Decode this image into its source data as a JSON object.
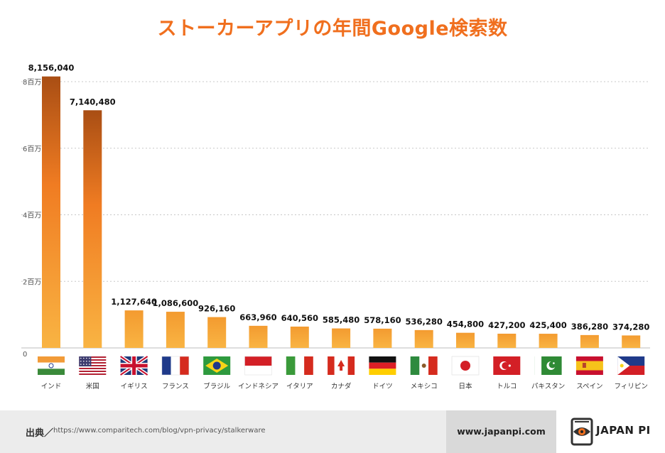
{
  "title": "ストーカーアプリの年間Google検索数",
  "colors": {
    "title": "#f06f1e",
    "bar_top": "#f6b545",
    "bar_top_major": "#a94e14",
    "bar_bottom": "#f9b443"
  },
  "footer": {
    "source_label": "出典／",
    "source_url": "https://www.comparitech.com/blog/vpn-privacy/stalkerware",
    "site": "www.japanpi.com",
    "brand": "JAPAN PI"
  },
  "chart_data": {
    "type": "bar",
    "title": "ストーカーアプリの年間Google検索数",
    "categories": [
      "インド",
      "米国",
      "イギリス",
      "フランス",
      "ブラジル",
      "インドネシア",
      "イタリア",
      "カナダ",
      "ドイツ",
      "メキシコ",
      "日本",
      "トルコ",
      "パキスタン",
      "スペイン",
      "フィリピン"
    ],
    "values": [
      8156040,
      7140480,
      1127640,
      1086600,
      926160,
      663960,
      640560,
      585480,
      578160,
      536280,
      454800,
      427200,
      425400,
      386280,
      374280
    ],
    "value_labels": [
      "8,156,040",
      "7,140,480",
      "1,127,640",
      "1,086,600",
      "926,160",
      "663,960",
      "640,560",
      "585,480",
      "578,160",
      "536,280",
      "454,800",
      "427,200",
      "425,400",
      "386,280",
      "374,280"
    ],
    "flags": [
      "india-flag",
      "usa-flag",
      "uk-flag",
      "france-flag",
      "brazil-flag",
      "indonesia-flag",
      "italy-flag",
      "canada-flag",
      "germany-flag",
      "mexico-flag",
      "japan-flag",
      "turkey-flag",
      "pakistan-flag",
      "spain-flag",
      "philippines-flag"
    ],
    "yticks": [
      0,
      2000000,
      4000000,
      6000000,
      8000000
    ],
    "ytick_labels": [
      "0",
      "2百万",
      "4百万",
      "6百万",
      "8百万"
    ],
    "ylim": [
      0,
      8300000
    ],
    "grid": true
  }
}
